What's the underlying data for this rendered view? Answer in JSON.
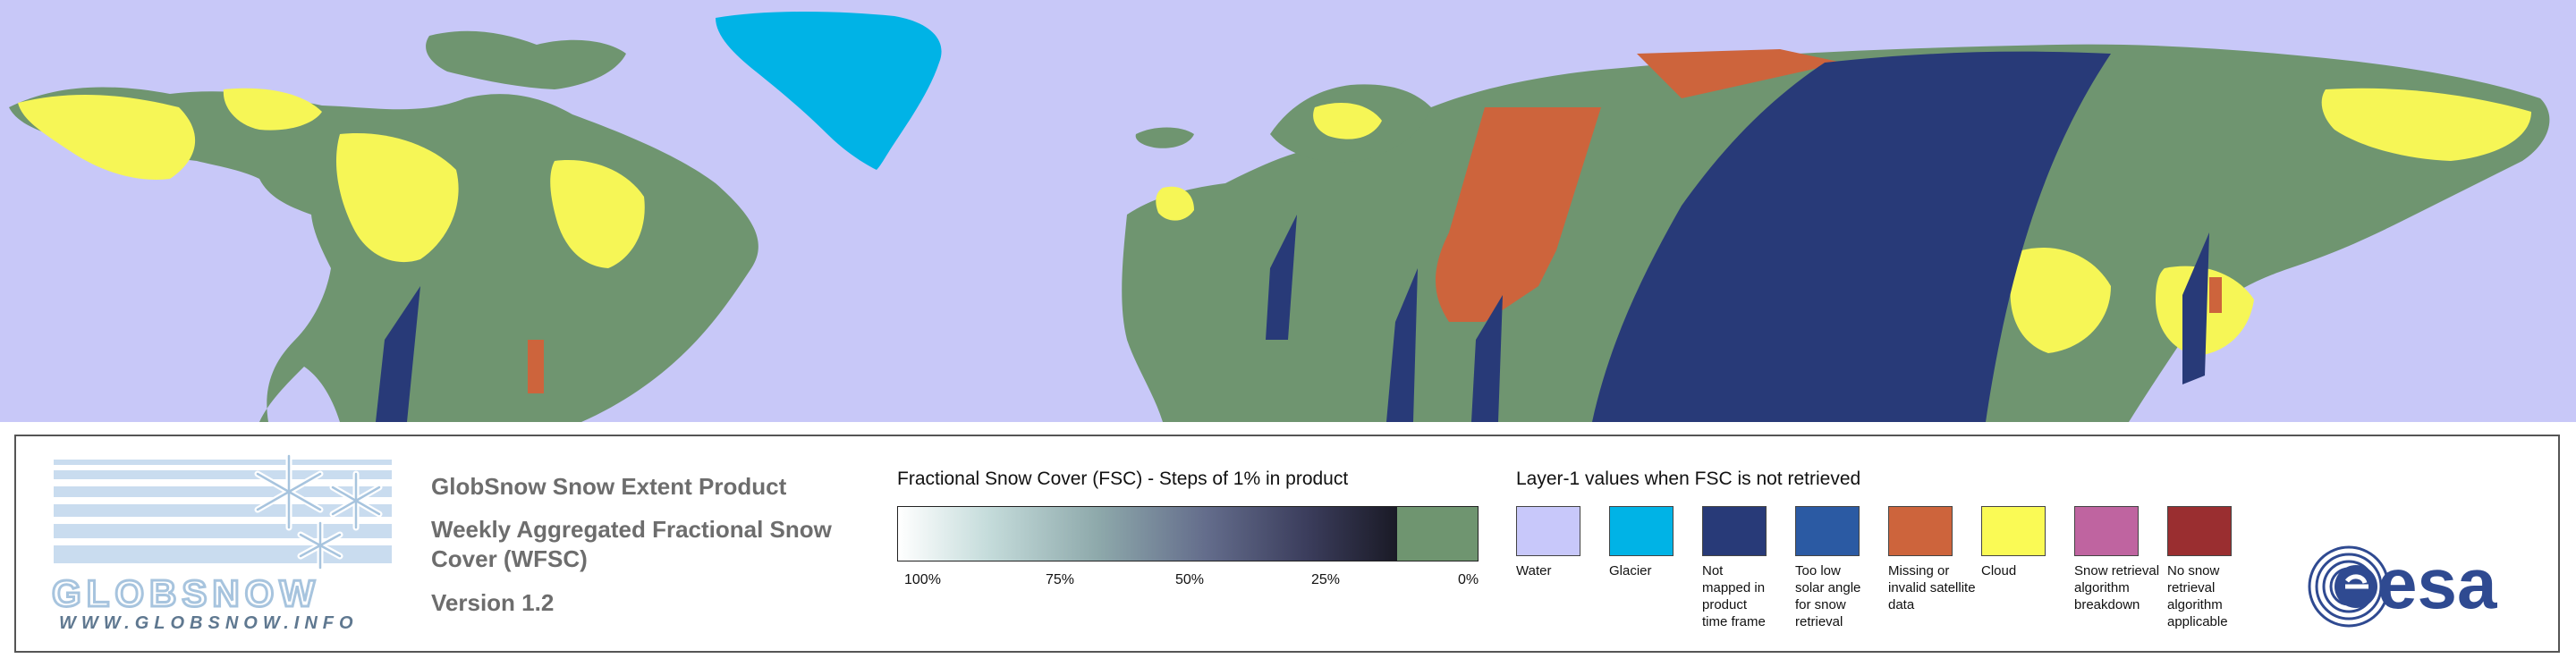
{
  "map": {
    "colors": {
      "water": "#c8c8f8",
      "land": "#6f9570",
      "snow": "#f6f656",
      "glacier": "#00b3e6",
      "not_mapped": "#283a78",
      "missing": "#cd643c",
      "too_low_sun": "#2b5aa3"
    }
  },
  "logo": {
    "wordmark": "GLOBSNOW",
    "url": "WWW.GLOBSNOW.INFO",
    "icon": "snowflake-icon"
  },
  "product": {
    "title": "GlobSnow Snow Extent Product",
    "subtitle_line1": "Weekly Aggregated Fractional Snow",
    "subtitle_line2": "Cover (WFSC)",
    "version": "Version 1.2"
  },
  "fsc_scale": {
    "title": "Fractional Snow Cover (FSC) - Steps of 1% in product",
    "ticks": [
      "100%",
      "75%",
      "50%",
      "25%",
      "0%"
    ],
    "gradient_start": "#ffffff",
    "gradient_end": "#1a1a26",
    "zero_color": "#6f9570"
  },
  "layer1": {
    "title": "Layer-1 values when FSC is not retrieved",
    "classes": [
      {
        "label": "Water",
        "color": "#c8c8fa"
      },
      {
        "label": "Glacier",
        "color": "#00b3e6"
      },
      {
        "label": "Not\nmapped in\nproduct\ntime frame",
        "color": "#283a78"
      },
      {
        "label": "Too low\nsolar angle\nfor snow\nretrieval",
        "color": "#2b5aa3"
      },
      {
        "label": "Missing or\ninvalid satellite\ndata",
        "color": "#cd643c"
      },
      {
        "label": "Cloud",
        "color": "#fafa55"
      },
      {
        "label": "Snow retrieval\nalgorithm\nbreakdown",
        "color": "#bf64a0"
      },
      {
        "label": "No snow\nretrieval\nalgorithm\napplicable",
        "color": "#9a2e30"
      }
    ]
  },
  "esa": {
    "text": "esa",
    "color": "#2f4a91"
  }
}
